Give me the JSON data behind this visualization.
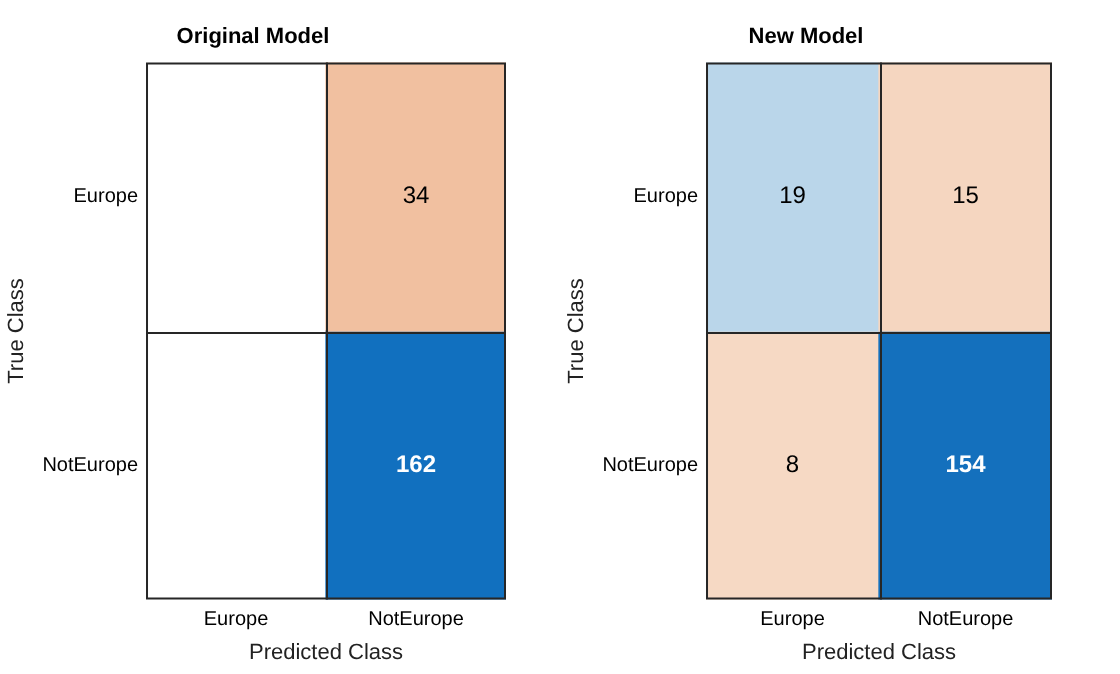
{
  "chart_data": [
    {
      "type": "heatmap",
      "title": "Original Model",
      "xlabel": "Predicted Class",
      "ylabel": "True Class",
      "categories": [
        "Europe",
        "NotEurope"
      ],
      "y_categories": [
        "Europe",
        "NotEurope"
      ],
      "cells": [
        [
          null,
          34
        ],
        [
          null,
          162
        ]
      ],
      "colors": [
        [
          null,
          "#f1c0a0"
        ],
        [
          null,
          "#1170bf"
        ]
      ],
      "data_labels": true
    },
    {
      "type": "heatmap",
      "title": "New Model",
      "xlabel": "Predicted Class",
      "ylabel": "True Class",
      "categories": [
        "Europe",
        "NotEurope"
      ],
      "y_categories": [
        "Europe",
        "NotEurope"
      ],
      "cells": [
        [
          19,
          15
        ],
        [
          8,
          154
        ]
      ],
      "colors": [
        [
          "#bad6ea",
          "#f5d6c0"
        ],
        [
          "#f6d9c4",
          "#1470bd"
        ]
      ],
      "data_labels": true
    }
  ]
}
